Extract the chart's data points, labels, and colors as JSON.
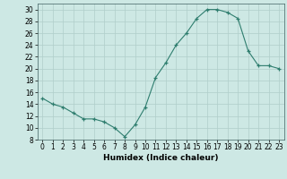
{
  "x": [
    0,
    1,
    2,
    3,
    4,
    5,
    6,
    7,
    8,
    9,
    10,
    11,
    12,
    13,
    14,
    15,
    16,
    17,
    18,
    19,
    20,
    21,
    22,
    23
  ],
  "y": [
    15,
    14,
    13.5,
    12.5,
    11.5,
    11.5,
    11,
    10,
    8.5,
    10.5,
    13.5,
    18.5,
    21,
    24,
    26,
    28.5,
    30,
    30,
    29.5,
    28.5,
    23,
    20.5,
    20.5,
    20
  ],
  "xlabel": "Humidex (Indice chaleur)",
  "xlim": [
    -0.5,
    23.5
  ],
  "ylim": [
    8,
    31
  ],
  "yticks": [
    8,
    10,
    12,
    14,
    16,
    18,
    20,
    22,
    24,
    26,
    28,
    30
  ],
  "xticks": [
    0,
    1,
    2,
    3,
    4,
    5,
    6,
    7,
    8,
    9,
    10,
    11,
    12,
    13,
    14,
    15,
    16,
    17,
    18,
    19,
    20,
    21,
    22,
    23
  ],
  "line_color": "#2e7d6e",
  "marker": "+",
  "bg_color": "#cde8e4",
  "grid_color": "#b0ceca",
  "label_fontsize": 6.5,
  "tick_fontsize": 5.5
}
